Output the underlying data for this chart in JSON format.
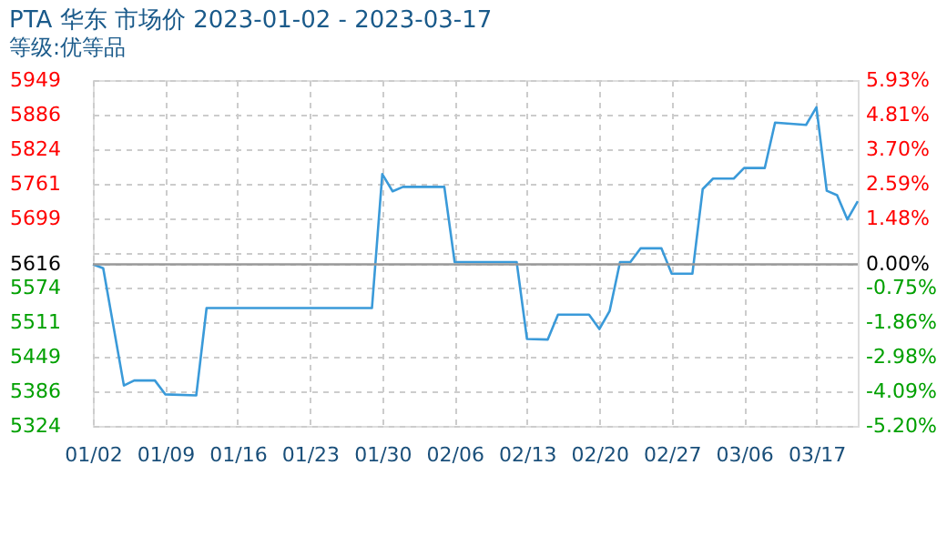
{
  "chart_data": {
    "type": "line",
    "title": "PTA 华东 市场价 2023-01-02 - 2023-03-17",
    "subtitle": "等级:优等品",
    "x": [
      "2023-01-02",
      "2023-01-03",
      "2023-01-05",
      "2023-01-06",
      "2023-01-08",
      "2023-01-09",
      "2023-01-12",
      "2023-01-13",
      "2023-01-29",
      "2023-01-30",
      "2023-01-31",
      "2023-02-01",
      "2023-02-05",
      "2023-02-06",
      "2023-02-12",
      "2023-02-13",
      "2023-02-15",
      "2023-02-16",
      "2023-02-19",
      "2023-02-20",
      "2023-02-21",
      "2023-02-22",
      "2023-02-23",
      "2023-02-24",
      "2023-02-26",
      "2023-02-27",
      "2023-03-01",
      "2023-03-02",
      "2023-03-03",
      "2023-03-05",
      "2023-03-06",
      "2023-03-08",
      "2023-03-09",
      "2023-03-12",
      "2023-03-13",
      "2023-03-14",
      "2023-03-15",
      "2023-03-16",
      "2023-03-17"
    ],
    "series": [
      {
        "color": "#3a9ad9",
        "values": [
          5616,
          5609,
          5397,
          5406,
          5406,
          5381,
          5379,
          5537,
          5537,
          5779,
          5748,
          5756,
          5756,
          5620,
          5620,
          5481,
          5480,
          5525,
          5525,
          5499,
          5532,
          5620,
          5620,
          5645,
          5645,
          5599,
          5599,
          5752,
          5771,
          5771,
          5790,
          5790,
          5872,
          5868,
          5900,
          5749,
          5741,
          5697,
          5730
        ]
      }
    ],
    "xlim": [
      "2023-01-02",
      "2023-03-17"
    ],
    "xticks": [
      {
        "value": "2023-01-02",
        "label": "01/02"
      },
      {
        "value": "2023-01-09",
        "label": "01/09"
      },
      {
        "value": "2023-01-16",
        "label": "01/16"
      },
      {
        "value": "2023-01-23",
        "label": "01/23"
      },
      {
        "value": "2023-01-30",
        "label": "01/30"
      },
      {
        "value": "2023-02-06",
        "label": "02/06"
      },
      {
        "value": "2023-02-13",
        "label": "02/13"
      },
      {
        "value": "2023-02-20",
        "label": "02/20"
      },
      {
        "value": "2023-02-27",
        "label": "02/27"
      },
      {
        "value": "2023-03-06",
        "label": "03/06"
      },
      {
        "value": "2023-03-13",
        "label": "03/17"
      }
    ],
    "ylim": [
      5324,
      5949
    ],
    "yticks": [
      5949,
      5886,
      5824,
      5761,
      5699,
      {
        "value": 5636.6,
        "label": null
      },
      5616,
      5574,
      5511,
      5449,
      5386,
      5324
    ],
    "y2lim": [
      -5.2,
      5.93
    ],
    "y2ticks": [
      {
        "value": 5.93,
        "label": "5.93%"
      },
      {
        "value": 4.81,
        "label": "4.81%"
      },
      {
        "value": 3.7,
        "label": "3.70%"
      },
      {
        "value": 2.59,
        "label": "2.59%"
      },
      {
        "value": 1.48,
        "label": "1.48%"
      },
      {
        "value": 0,
        "label": "0.00%"
      },
      {
        "value": -0.75,
        "label": "-0.75%"
      },
      {
        "value": -1.86,
        "label": "-1.86%"
      },
      {
        "value": -2.98,
        "label": "-2.98%"
      },
      {
        "value": -4.09,
        "label": "-4.09%"
      },
      {
        "value": -5.2,
        "label": "-5.20%"
      }
    ],
    "ref_lines": [
      {
        "axis": "y",
        "value": 5616,
        "color": "#999999"
      }
    ],
    "grid": true,
    "legend": false,
    "marker": "none",
    "line_style": "solid"
  }
}
